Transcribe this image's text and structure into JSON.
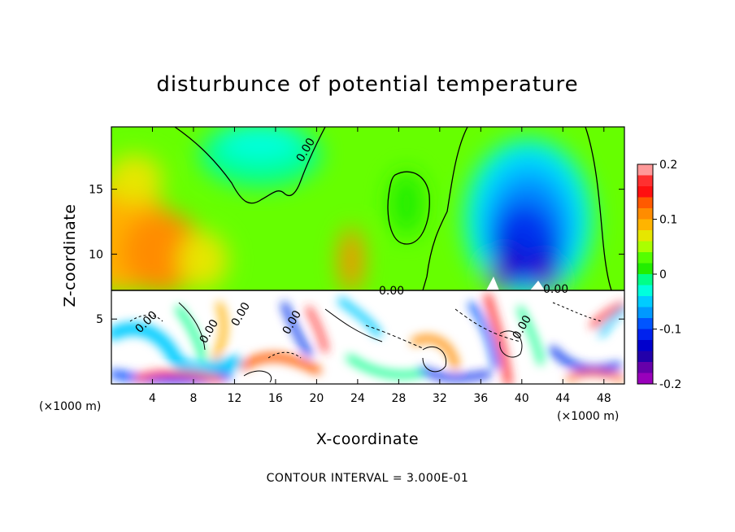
{
  "chart_data": {
    "type": "heatmap",
    "title": "disturbunce of potential temperature",
    "xlabel": "X-coordinate",
    "ylabel": "Z-coordinate",
    "x_unit_label": "(×1000 m)",
    "xlim": [
      0,
      50
    ],
    "ylim": [
      0,
      19.8
    ],
    "x_ticks": [
      4,
      8,
      12,
      16,
      20,
      24,
      28,
      32,
      36,
      40,
      44,
      48
    ],
    "y_ticks": [
      5,
      10,
      15
    ],
    "colorbar": {
      "range": [
        -0.2,
        0.2
      ],
      "ticks": [
        "0.2",
        "0.1",
        "0",
        "-0.1",
        "-0.2"
      ],
      "tick_values": [
        0.2,
        0.1,
        0,
        -0.1,
        -0.2
      ],
      "colors": [
        "#ff9999",
        "#ff3030",
        "#ff1010",
        "#ff5a00",
        "#ff8c00",
        "#ffb400",
        "#e6e600",
        "#aaff00",
        "#55ff00",
        "#22ee00",
        "#00ff88",
        "#00ffdd",
        "#00ccff",
        "#0099ff",
        "#0055ff",
        "#0022ee",
        "#0000cc",
        "#2200aa",
        "#6600aa",
        "#9900bb"
      ]
    },
    "contour_labels": [
      "0.00",
      "0.00",
      "0.00",
      "0.00",
      "0.00",
      "0.00",
      "0.00",
      "0.00"
    ],
    "note": "CONTOUR INTERVAL = 3.000E-01"
  }
}
